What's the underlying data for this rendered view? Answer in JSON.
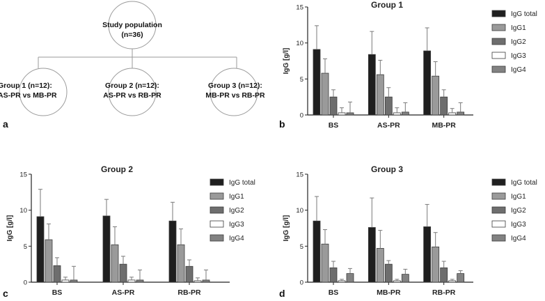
{
  "panel_labels": [
    "a",
    "b",
    "c",
    "d"
  ],
  "flowchart": {
    "root": [
      "Study population",
      "(n=36)"
    ],
    "groups": [
      {
        "line1": "Group 1 (n=12):",
        "line2": "AS-PR vs MB-PR"
      },
      {
        "line1": "Group 2 (n=12):",
        "line2": "AS-PR vs RB-PR"
      },
      {
        "line1": "Group 3 (n=12):",
        "line2": "MB-PR vs RB-PR"
      }
    ]
  },
  "colors": {
    "IgG total": "#1f1f1f",
    "IgG1": "#9a9a9a",
    "IgG2": "#6e6e6e",
    "IgG3": "#ffffff",
    "IgG4": "#828282",
    "error_bar": "#7a7a7a",
    "axis": "#222222"
  },
  "chart_data": [
    {
      "type": "bar",
      "title": "Group 1",
      "ylabel": "IgG [g/l]",
      "xlabel": "",
      "ylim": [
        0,
        15
      ],
      "yticks": [
        0,
        5,
        10,
        15
      ],
      "categories": [
        "BS",
        "AS-PR",
        "MB-PR"
      ],
      "series": [
        {
          "name": "IgG total",
          "values": [
            9.1,
            8.4,
            8.9
          ],
          "errors": [
            3.3,
            3.2,
            3.2
          ]
        },
        {
          "name": "IgG1",
          "values": [
            5.8,
            5.6,
            5.4
          ],
          "errors": [
            2.0,
            2.0,
            2.0
          ]
        },
        {
          "name": "IgG2",
          "values": [
            2.5,
            2.5,
            2.5
          ],
          "errors": [
            1.0,
            1.3,
            1.0
          ]
        },
        {
          "name": "IgG3",
          "values": [
            0.3,
            0.3,
            0.3
          ],
          "errors": [
            0.7,
            0.7,
            0.6
          ]
        },
        {
          "name": "IgG4",
          "values": [
            0.3,
            0.4,
            0.4
          ],
          "errors": [
            1.5,
            1.3,
            1.3
          ]
        }
      ]
    },
    {
      "type": "bar",
      "title": "Group 2",
      "ylabel": "IgG [g/l]",
      "xlabel": "",
      "ylim": [
        0,
        15
      ],
      "yticks": [
        0,
        5,
        10,
        15
      ],
      "categories": [
        "BS",
        "AS-PR",
        "RB-PR"
      ],
      "series": [
        {
          "name": "IgG total",
          "values": [
            9.1,
            9.2,
            8.5
          ],
          "errors": [
            3.8,
            2.3,
            2.6
          ]
        },
        {
          "name": "IgG1",
          "values": [
            5.9,
            5.2,
            5.2
          ],
          "errors": [
            2.2,
            2.5,
            2.2
          ]
        },
        {
          "name": "IgG2",
          "values": [
            2.3,
            2.5,
            2.2
          ],
          "errors": [
            1.1,
            1.1,
            0.9
          ]
        },
        {
          "name": "IgG3",
          "values": [
            0.3,
            0.3,
            0.2
          ],
          "errors": [
            0.4,
            0.4,
            0.4
          ]
        },
        {
          "name": "IgG4",
          "values": [
            0.3,
            0.3,
            0.3
          ],
          "errors": [
            1.9,
            1.4,
            1.4
          ]
        }
      ]
    },
    {
      "type": "bar",
      "title": "Group 3",
      "ylabel": "IgG [g/l]",
      "xlabel": "",
      "ylim": [
        0,
        15
      ],
      "yticks": [
        0,
        5,
        10,
        15
      ],
      "categories": [
        "BS",
        "MB-PR",
        "RB-PR"
      ],
      "series": [
        {
          "name": "IgG total",
          "values": [
            8.5,
            7.6,
            7.7
          ],
          "errors": [
            3.4,
            4.1,
            3.1
          ]
        },
        {
          "name": "IgG1",
          "values": [
            5.3,
            4.7,
            4.9
          ],
          "errors": [
            2.0,
            2.5,
            2.0
          ]
        },
        {
          "name": "IgG2",
          "values": [
            2.0,
            2.5,
            2.0
          ],
          "errors": [
            0.9,
            0.5,
            0.9
          ]
        },
        {
          "name": "IgG3",
          "values": [
            0.2,
            0.2,
            0.2
          ],
          "errors": [
            0.2,
            0.2,
            0.2
          ]
        },
        {
          "name": "IgG4",
          "values": [
            1.2,
            1.1,
            1.2
          ],
          "errors": [
            0.7,
            0.7,
            0.4
          ]
        }
      ]
    }
  ]
}
